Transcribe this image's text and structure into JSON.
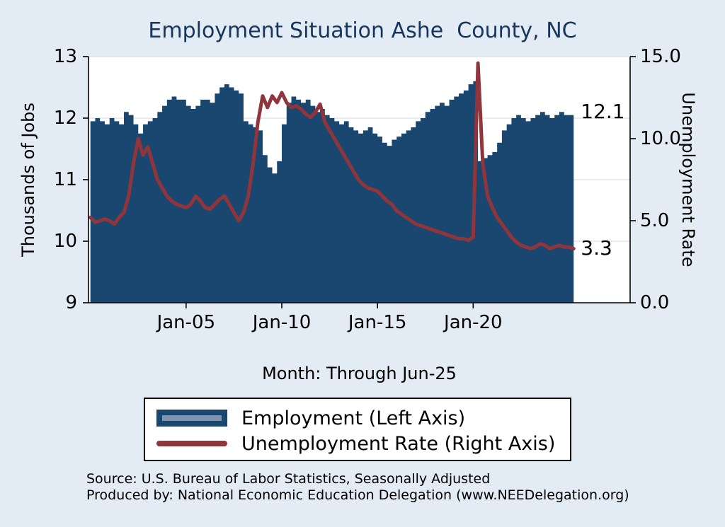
{
  "colors": {
    "background": "#e3ebf4",
    "plot_background": "#ffffff",
    "employment_fill": "#1A476F",
    "unemployment_line": "#90353B",
    "title_text": "#17365d",
    "gridline": "#d3e3ee",
    "axis": "#000000"
  },
  "notes": {
    "line1": "Source: U.S. Bureau of Labor Statistics, Seasonally Adjusted",
    "line2": "Produced by: National Economic Education Delegation (www.NEEDelegation.org)"
  },
  "chart_data": {
    "type": "area+line",
    "title": "Employment Situation Ashe  County, NC",
    "xlabel": "Month: Through Jun-25",
    "ylabel_left": "Thousands of Jobs",
    "ylabel_right": "Unemployment Rate",
    "x_start": 2000.0,
    "x_step_years": 0.25,
    "x_end_label": "Jun-25",
    "xlim": [
      1999.9,
      2028.2
    ],
    "ylim_left": [
      9,
      13
    ],
    "ylim_right": [
      0,
      15
    ],
    "yticks_left": [
      "9",
      "10",
      "11",
      "12",
      "13"
    ],
    "yticks_right": [
      "0.0",
      "5.0",
      "10.0",
      "15.0"
    ],
    "xticks": [
      {
        "label": "Jan-05",
        "x": 2005
      },
      {
        "label": "Jan-10",
        "x": 2010
      },
      {
        "label": "Jan-15",
        "x": 2015
      },
      {
        "label": "Jan-20",
        "x": 2020
      }
    ],
    "grid": true,
    "legend_position": "below",
    "annotations": [
      {
        "text": "12.1",
        "axis": "left",
        "value": 12.1
      },
      {
        "text": "3.3",
        "axis": "right",
        "value": 3.3
      }
    ],
    "series": [
      {
        "name": "Employment (Left Axis)",
        "axis": "left",
        "type": "area",
        "color": "#1A476F",
        "values": [
          11.95,
          12.0,
          11.95,
          11.9,
          12.0,
          11.95,
          11.9,
          12.1,
          12.05,
          11.9,
          11.75,
          11.9,
          11.95,
          12.0,
          12.1,
          12.2,
          12.3,
          12.35,
          12.3,
          12.3,
          12.2,
          12.15,
          12.2,
          12.3,
          12.3,
          12.25,
          12.4,
          12.5,
          12.55,
          12.5,
          12.45,
          12.4,
          11.95,
          11.9,
          11.85,
          11.8,
          11.4,
          11.2,
          11.1,
          11.3,
          11.9,
          12.25,
          12.35,
          12.3,
          12.25,
          12.3,
          12.2,
          12.1,
          12.15,
          12.05,
          12.0,
          11.95,
          11.9,
          11.95,
          11.85,
          11.8,
          11.75,
          11.8,
          11.85,
          11.75,
          11.7,
          11.6,
          11.55,
          11.65,
          11.7,
          11.75,
          11.8,
          11.85,
          11.95,
          12.0,
          12.1,
          12.15,
          12.2,
          12.25,
          12.2,
          12.3,
          12.35,
          12.4,
          12.45,
          12.55,
          12.6,
          11.3,
          11.35,
          11.4,
          11.45,
          11.6,
          11.8,
          11.9,
          12.0,
          12.05,
          12.0,
          11.95,
          12.0,
          12.05,
          12.1,
          12.05,
          12.0,
          12.05,
          12.1,
          12.05,
          12.05,
          12.1
        ]
      },
      {
        "name": "Unemployment Rate (Right Axis)",
        "axis": "right",
        "type": "line",
        "color": "#90353B",
        "values": [
          5.2,
          4.9,
          5.0,
          5.1,
          5.0,
          4.8,
          5.2,
          5.5,
          6.5,
          8.5,
          10.0,
          9.0,
          9.5,
          8.5,
          7.5,
          7.0,
          6.5,
          6.2,
          6.0,
          5.9,
          5.8,
          6.0,
          6.5,
          6.2,
          5.8,
          5.7,
          6.0,
          6.3,
          6.5,
          6.0,
          5.5,
          5.0,
          5.5,
          6.5,
          8.5,
          11.0,
          12.6,
          11.9,
          12.6,
          12.2,
          12.8,
          12.2,
          11.9,
          12.0,
          11.8,
          11.5,
          11.3,
          11.6,
          12.1,
          11.0,
          10.5,
          10.0,
          9.5,
          9.0,
          8.5,
          8.0,
          7.5,
          7.2,
          7.0,
          6.9,
          6.8,
          6.5,
          6.2,
          6.0,
          5.6,
          5.4,
          5.2,
          5.0,
          4.8,
          4.7,
          4.6,
          4.5,
          4.4,
          4.3,
          4.2,
          4.1,
          4.0,
          3.9,
          3.9,
          3.8,
          4.0,
          14.6,
          8.5,
          6.5,
          5.8,
          5.2,
          4.8,
          4.4,
          4.0,
          3.7,
          3.5,
          3.4,
          3.3,
          3.4,
          3.6,
          3.5,
          3.3,
          3.4,
          3.5,
          3.4,
          3.4,
          3.3
        ]
      }
    ]
  }
}
